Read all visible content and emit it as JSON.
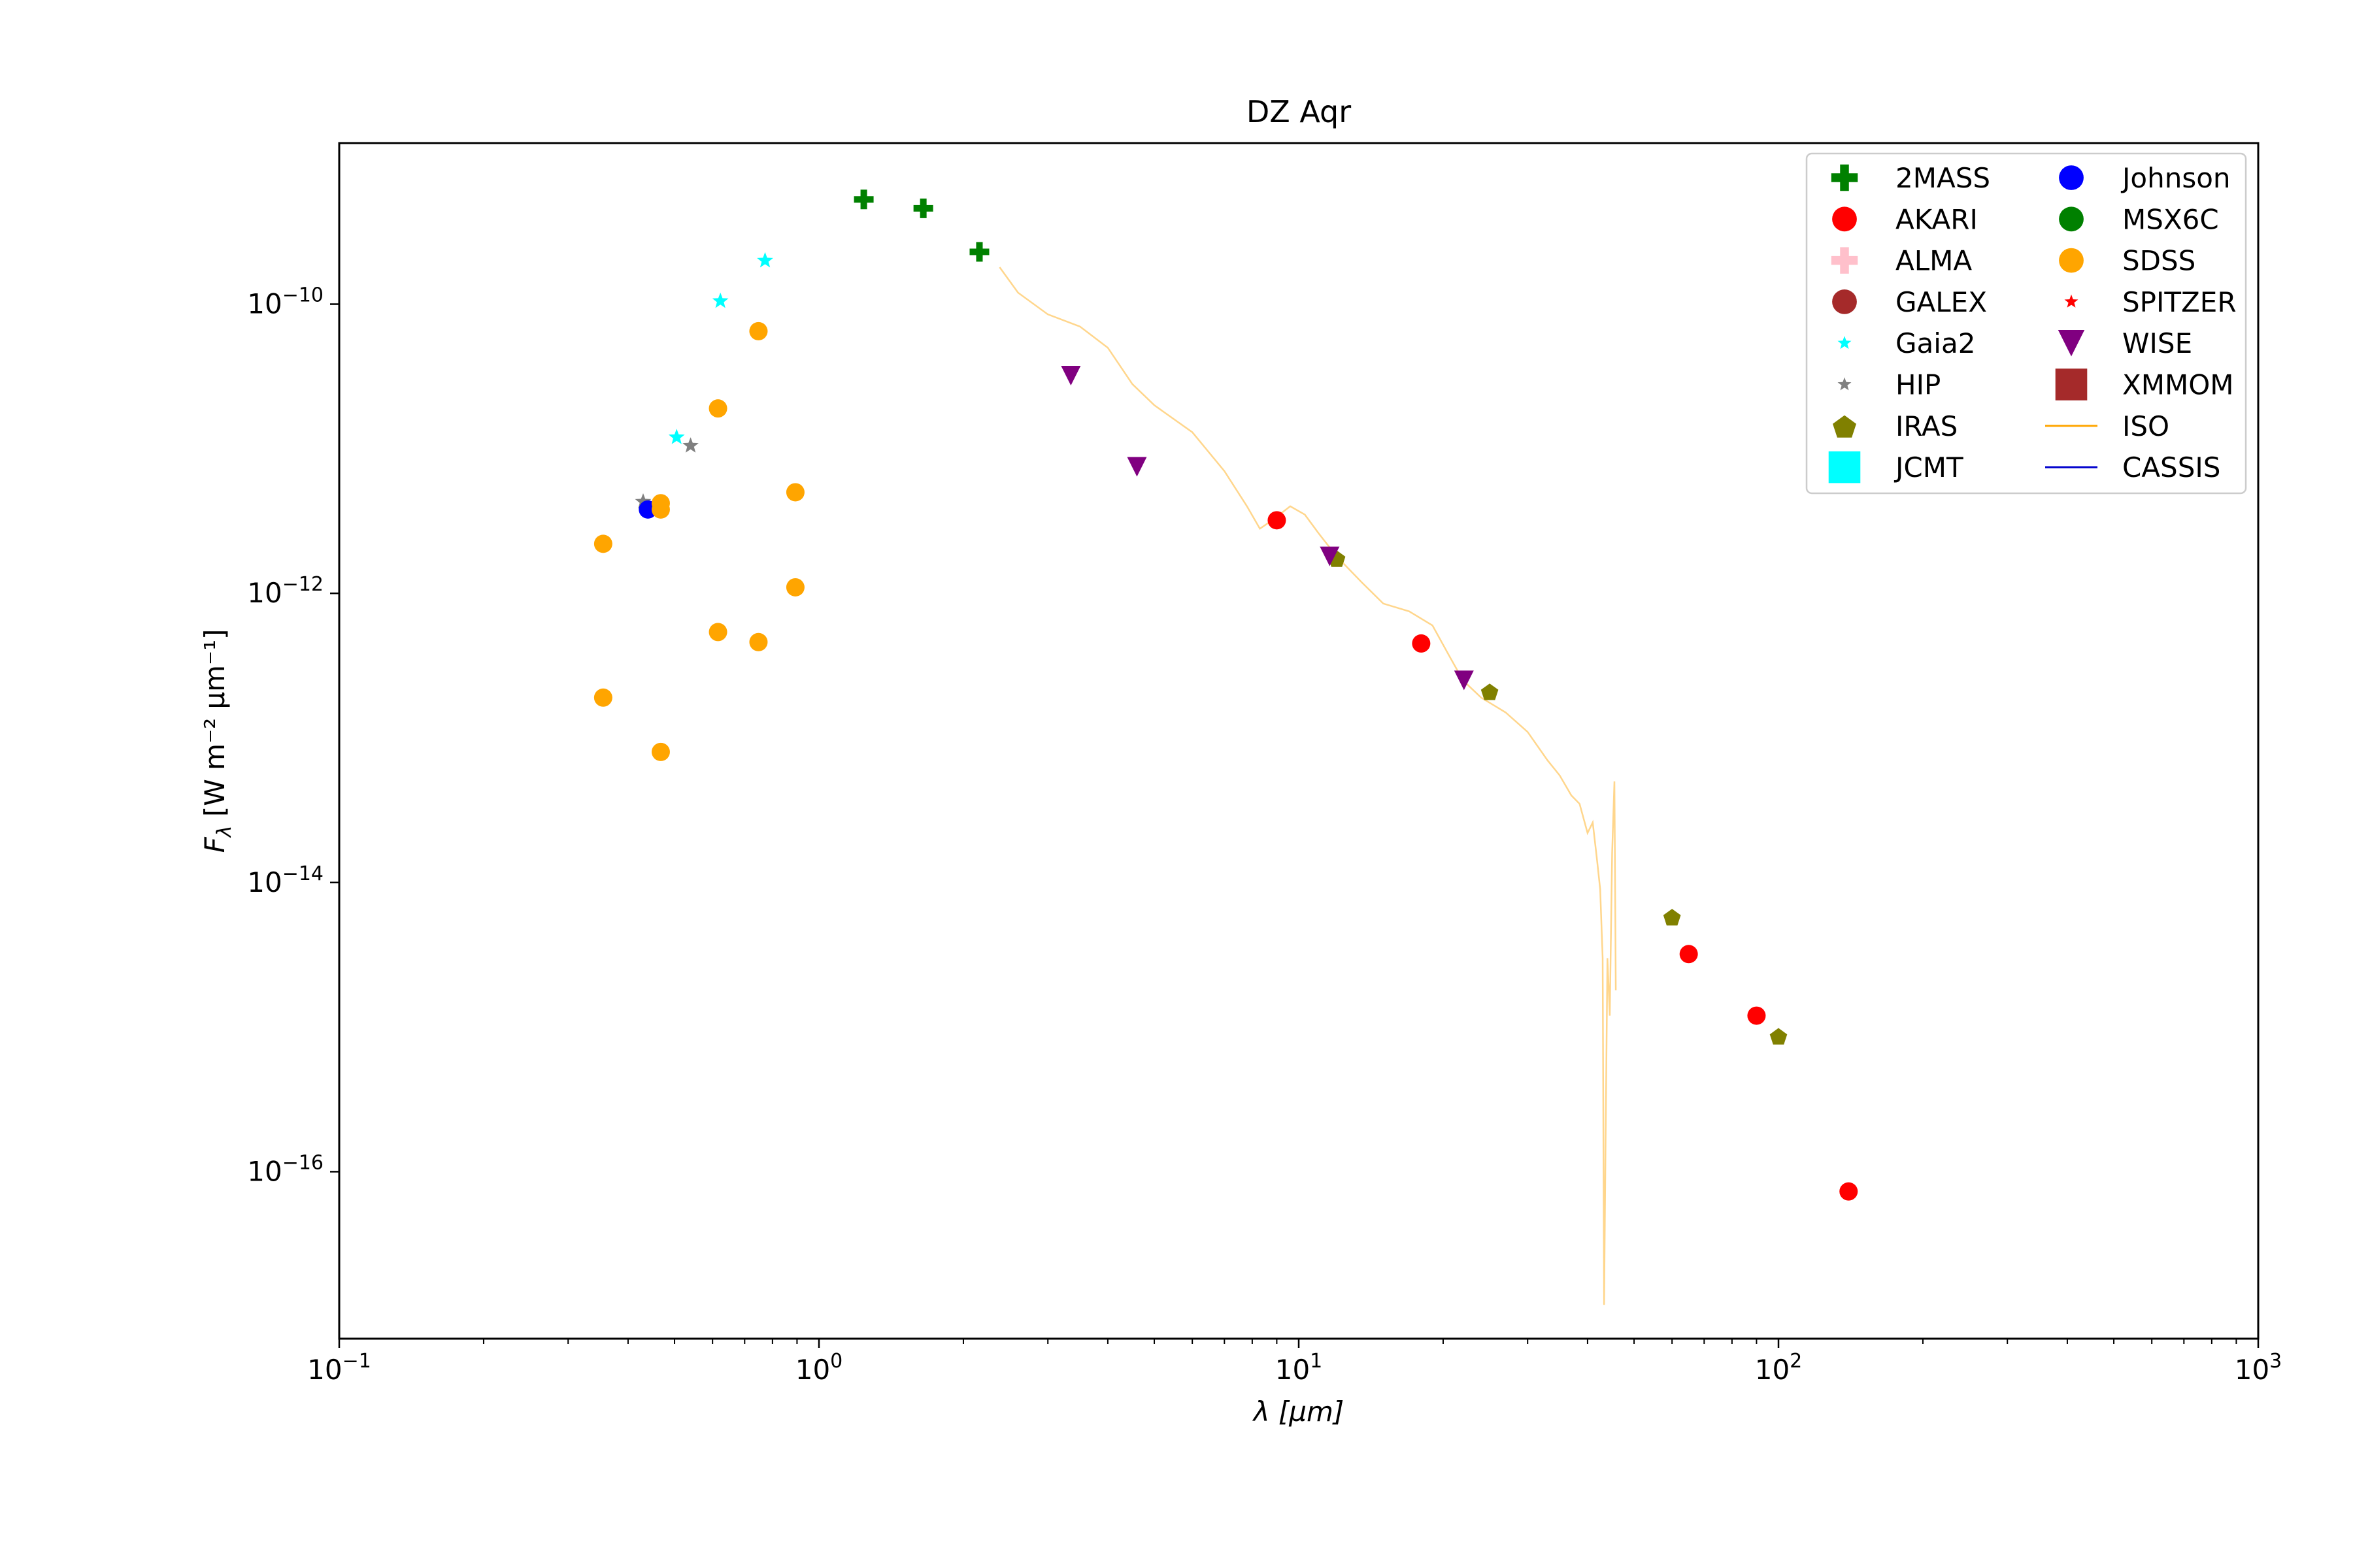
{
  "chart_data": {
    "type": "scatter",
    "title": "DZ Aqr",
    "xlabel": "λ [μm]",
    "ylabel": "Fλ [W m⁻² μm⁻¹]",
    "x_scale": "log",
    "y_scale": "log",
    "xlim": [
      0.1,
      1000
    ],
    "ylim": [
      7e-18,
      1.3e-09
    ],
    "x_ticks": [
      {
        "value": 0.1,
        "base": "10",
        "exp": "−1"
      },
      {
        "value": 1,
        "base": "10",
        "exp": "0"
      },
      {
        "value": 10,
        "base": "10",
        "exp": "1"
      },
      {
        "value": 100,
        "base": "10",
        "exp": "2"
      },
      {
        "value": 1000,
        "base": "10",
        "exp": "3"
      }
    ],
    "y_ticks": [
      {
        "value": 1e-10,
        "base": "10",
        "exp": "−10"
      },
      {
        "value": 1e-12,
        "base": "10",
        "exp": "−12"
      },
      {
        "value": 1e-14,
        "base": "10",
        "exp": "−14"
      },
      {
        "value": 1e-16,
        "base": "10",
        "exp": "−16"
      }
    ],
    "grid": false,
    "legend_position": "top-right",
    "series": [
      {
        "name": "2MASS",
        "marker": "plus",
        "color": "#008000",
        "points": [
          [
            1.24,
            5.3e-10
          ],
          [
            1.65,
            4.6e-10
          ],
          [
            2.16,
            2.3e-10
          ]
        ]
      },
      {
        "name": "AKARI",
        "marker": "circle",
        "color": "#ff0000",
        "points": [
          [
            9.0,
            3.2e-12
          ],
          [
            18.0,
            4.5e-13
          ],
          [
            65,
            3.2e-15
          ],
          [
            90,
            1.2e-15
          ],
          [
            140,
            7.3e-17
          ]
        ]
      },
      {
        "name": "ALMA",
        "marker": "plus",
        "color": "#ffc0cb",
        "points": []
      },
      {
        "name": "GALEX",
        "marker": "circle",
        "color": "#a52a2a",
        "points": []
      },
      {
        "name": "Gaia2",
        "marker": "star",
        "color": "#00ffff",
        "points": [
          [
            0.505,
            1.2e-11
          ],
          [
            0.623,
            1.05e-10
          ],
          [
            0.772,
            2e-10
          ]
        ]
      },
      {
        "name": "HIP",
        "marker": "star",
        "color": "#808080",
        "points": [
          [
            0.43,
            4.3e-12
          ],
          [
            0.54,
            1.05e-11
          ]
        ]
      },
      {
        "name": "IRAS",
        "marker": "pentagon",
        "color": "#808000",
        "points": [
          [
            12,
            1.75e-12
          ],
          [
            25,
            2.1e-13
          ],
          [
            60,
            5.8e-15
          ],
          [
            100,
            8.7e-16
          ]
        ]
      },
      {
        "name": "JCMT",
        "marker": "square",
        "color": "#00ffff",
        "points": []
      },
      {
        "name": "Johnson",
        "marker": "circle",
        "color": "#0000ff",
        "points": [
          [
            0.44,
            3.8e-12
          ]
        ]
      },
      {
        "name": "MSX6C",
        "marker": "circle",
        "color": "#008000",
        "points": []
      },
      {
        "name": "SDSS",
        "marker": "circle",
        "color": "#ffa500",
        "points": [
          [
            0.355,
            2.2e-12
          ],
          [
            0.355,
            1.9e-13
          ],
          [
            0.468,
            4.2e-12
          ],
          [
            0.468,
            3.8e-12
          ],
          [
            0.468,
            8e-14
          ],
          [
            0.616,
            1.9e-11
          ],
          [
            0.616,
            5.4e-13
          ],
          [
            0.748,
            6.5e-11
          ],
          [
            0.748,
            4.6e-13
          ],
          [
            0.893,
            5e-12
          ],
          [
            0.893,
            1.1e-12
          ]
        ]
      },
      {
        "name": "SPITZER",
        "marker": "star",
        "color": "#ff0000",
        "points": []
      },
      {
        "name": "WISE",
        "marker": "triangle-down",
        "color": "#800080",
        "points": [
          [
            3.35,
            3.2e-11
          ],
          [
            4.6,
            7.5e-12
          ],
          [
            11.6,
            1.8e-12
          ],
          [
            22.1,
            2.5e-13
          ]
        ]
      },
      {
        "name": "XMMOM",
        "marker": "square",
        "color": "#a52a2a",
        "points": []
      },
      {
        "name": "ISO",
        "marker": "line",
        "color": "#ffa500",
        "points": [
          [
            2.38,
            1.8e-10
          ],
          [
            2.6,
            1.2e-10
          ],
          [
            3.0,
            8.5e-11
          ],
          [
            3.5,
            7e-11
          ],
          [
            4.0,
            5e-11
          ],
          [
            4.5,
            2.8e-11
          ],
          [
            5.0,
            2e-11
          ],
          [
            6.0,
            1.3e-11
          ],
          [
            7.0,
            7e-12
          ],
          [
            7.8,
            4e-12
          ],
          [
            8.3,
            2.8e-12
          ],
          [
            8.8,
            3.2e-12
          ],
          [
            9.6,
            4e-12
          ],
          [
            10.3,
            3.5e-12
          ],
          [
            11.0,
            2.6e-12
          ],
          [
            12.0,
            1.8e-12
          ],
          [
            13.5,
            1.2e-12
          ],
          [
            15.0,
            8.5e-13
          ],
          [
            17.0,
            7.5e-13
          ],
          [
            19.0,
            6e-13
          ],
          [
            20.5,
            3.8e-13
          ],
          [
            22.0,
            2.5e-13
          ],
          [
            24.0,
            1.9e-13
          ],
          [
            27.0,
            1.5e-13
          ],
          [
            30.0,
            1.1e-13
          ],
          [
            33.0,
            7e-14
          ],
          [
            35.0,
            5.5e-14
          ],
          [
            37.0,
            4e-14
          ],
          [
            38.5,
            3.5e-14
          ],
          [
            40.0,
            2.2e-14
          ],
          [
            41.0,
            2.6e-14
          ],
          [
            41.8,
            1.5e-14
          ],
          [
            42.5,
            9e-15
          ],
          [
            43.0,
            3e-15
          ],
          [
            43.3,
            1.2e-17
          ],
          [
            43.6,
            1.5e-16
          ],
          [
            44.0,
            3e-15
          ],
          [
            44.5,
            1.2e-15
          ],
          [
            45.0,
            1.6e-14
          ],
          [
            45.5,
            5e-14
          ],
          [
            45.8,
            1.8e-15
          ]
        ]
      },
      {
        "name": "CASSIS",
        "marker": "line",
        "color": "#0000cd",
        "points": []
      }
    ]
  }
}
